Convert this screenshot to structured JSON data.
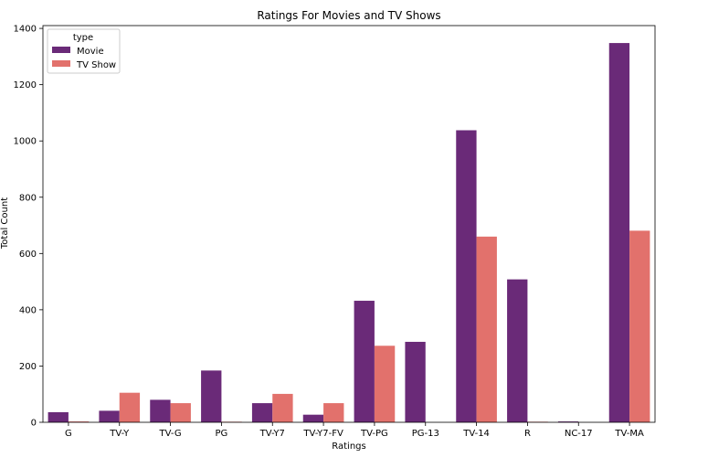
{
  "chart_data": {
    "type": "bar",
    "title": "Ratings For Movies and TV Shows",
    "xlabel": "Ratings",
    "ylabel": "Total Count",
    "categories": [
      "G",
      "TV-Y",
      "TV-G",
      "PG",
      "TV-Y7",
      "TV-Y7-FV",
      "TV-PG",
      "PG-13",
      "TV-14",
      "R",
      "NC-17",
      "TV-MA"
    ],
    "series": [
      {
        "name": "Movie",
        "color": "#6a2a78",
        "values": [
          36,
          41,
          80,
          184,
          68,
          27,
          432,
          286,
          1038,
          508,
          3,
          1348
        ]
      },
      {
        "name": "TV Show",
        "color": "#e2716c",
        "values": [
          3,
          105,
          68,
          2,
          101,
          68,
          272,
          0,
          660,
          2,
          0,
          681
        ]
      }
    ],
    "ylim": [
      0,
      1410
    ],
    "yticks": [
      0,
      200,
      400,
      600,
      800,
      1000,
      1200,
      1400
    ],
    "legend": {
      "title": "type",
      "placement": "top-left"
    },
    "grid": false
  }
}
